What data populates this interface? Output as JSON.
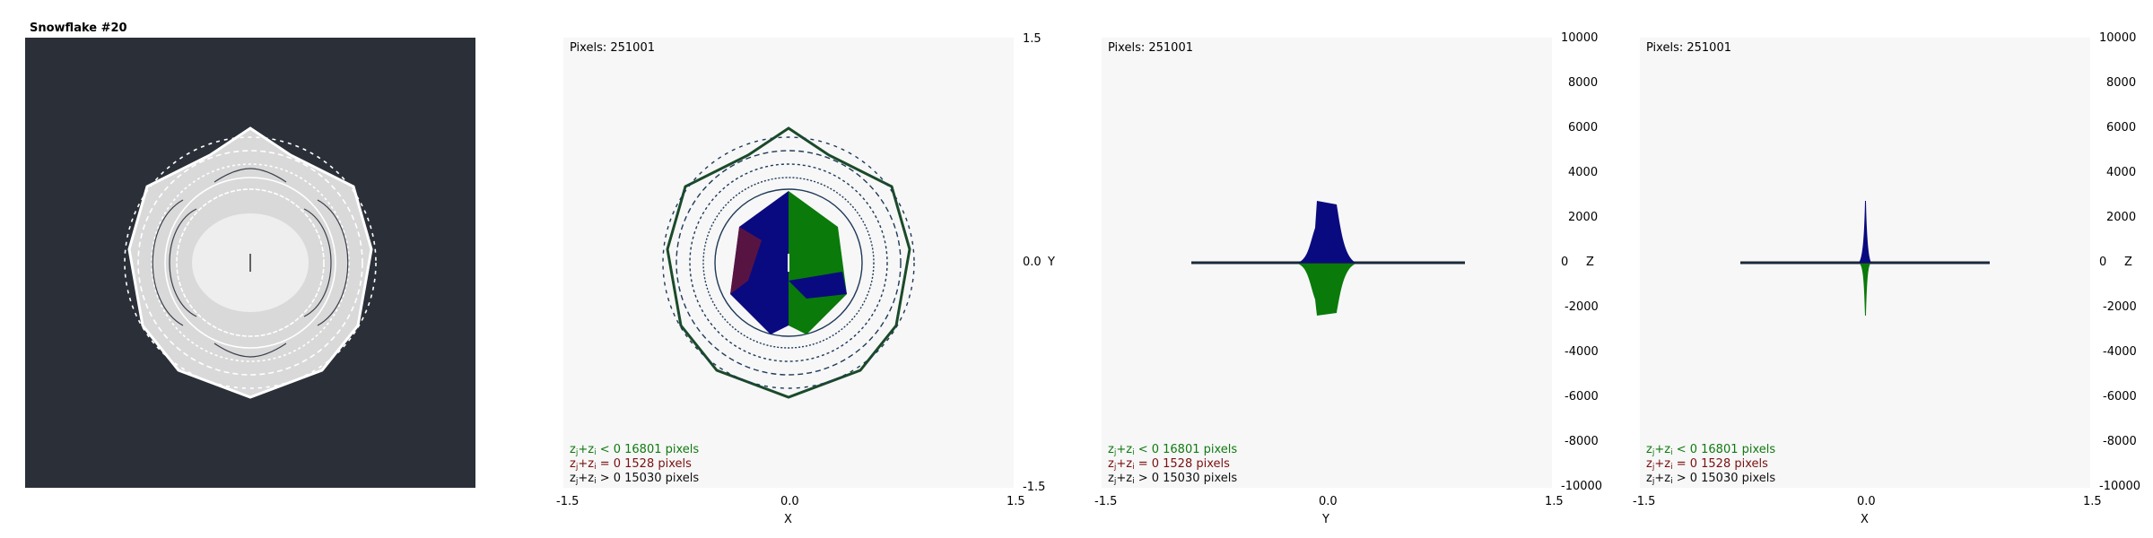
{
  "app": {
    "title": "Snowflake #20"
  },
  "views": {
    "pixels_label": "Pixels: 251001",
    "legend": [
      {
        "pre": "z",
        "sub1": "j",
        "mid": "+z",
        "sub2": "i",
        "post": " < 0  16801 pixels",
        "color": "#107a10"
      },
      {
        "pre": "z",
        "sub1": "j",
        "mid": "+z",
        "sub2": "i",
        "post": " = 0  1528 pixels",
        "color": "#7a1010"
      },
      {
        "pre": "z",
        "sub1": "j",
        "mid": "+z",
        "sub2": "i",
        "post": " > 0  15030 pixels",
        "color": "#101010"
      }
    ],
    "xy": {
      "x_ticks": [
        "-1.5",
        "0.0",
        "1.5"
      ],
      "x_label": "X",
      "y_ticks": [
        "1.5",
        "0.0",
        "-1.5"
      ],
      "y_label": "Y"
    },
    "yz": {
      "x_ticks": [
        "-1.5",
        "0.0",
        "1.5"
      ],
      "x_label": "Y",
      "z_ticks": [
        "10000",
        "8000",
        "6000",
        "4000",
        "2000",
        "0",
        "-2000",
        "-4000",
        "-6000",
        "-8000",
        "-10000"
      ],
      "z_label": "Z"
    },
    "xz": {
      "x_ticks": [
        "-1.5",
        "0.0",
        "1.5"
      ],
      "x_label": "X",
      "z_ticks": [
        "10000",
        "8000",
        "6000",
        "4000",
        "2000",
        "0",
        "-2000",
        "-4000",
        "-6000",
        "-8000",
        "-10000"
      ],
      "z_label": "Z"
    }
  },
  "colors": {
    "negative": "#0a7a0a",
    "zero": "#8a1a1a",
    "positive": "#0a0a80",
    "outline": "#143a2a",
    "snow": "#e8e8e8",
    "bg_dark": "#2a2f38",
    "panel_bg": "#f7f7f7"
  }
}
